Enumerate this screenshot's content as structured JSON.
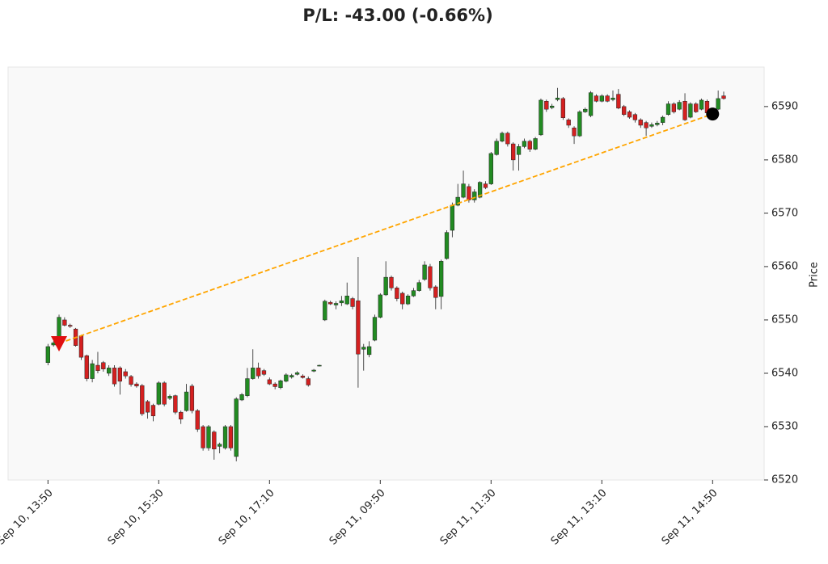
{
  "chart_data": {
    "type": "candlestick",
    "title": "P/L: -43.00 (-0.66%)",
    "y_label": "Price",
    "up_color": "#228b22",
    "down_color": "#d42020",
    "line_color": "#ffa500",
    "xlim": [
      -7.2,
      129.3
    ],
    "ylim": [
      6520,
      6597.4
    ],
    "yticks": [
      6520,
      6530,
      6540,
      6550,
      6560,
      6570,
      6580,
      6590
    ],
    "xticks": [
      {
        "value": 0,
        "label": "Sep 10, 13:50"
      },
      {
        "value": 20,
        "label": "Sep 10, 15:30"
      },
      {
        "value": 40,
        "label": "Sep 10, 17:10"
      },
      {
        "value": 60,
        "label": "Sep 11, 09:50"
      },
      {
        "value": 80,
        "label": "Sep 11, 11:30"
      },
      {
        "value": 100,
        "label": "Sep 11, 13:10"
      },
      {
        "value": 120,
        "label": "Sep 11, 14:50"
      }
    ],
    "x": [
      0,
      1,
      2,
      3,
      4,
      5,
      6,
      7,
      8,
      9,
      10,
      11,
      12,
      13,
      14,
      15,
      16,
      17,
      18,
      19,
      20,
      21,
      22,
      23,
      24,
      25,
      26,
      27,
      28,
      29,
      30,
      31,
      32,
      33,
      34,
      35,
      36,
      37,
      38,
      39,
      40,
      41,
      42,
      43,
      44,
      45,
      46,
      47,
      48,
      49,
      50,
      51,
      52,
      53,
      54,
      55,
      56,
      57,
      58,
      59,
      60,
      61,
      62,
      63,
      64,
      65,
      66,
      67,
      68,
      69,
      70,
      71,
      72,
      73,
      74,
      75,
      76,
      77,
      78,
      79,
      80,
      81,
      82,
      83,
      84,
      85,
      86,
      87,
      88,
      89,
      90,
      91,
      92,
      93,
      94,
      95,
      96,
      97,
      98,
      99,
      100,
      101,
      102,
      103,
      104,
      105,
      106,
      107,
      108,
      109,
      110,
      111,
      112,
      113,
      114,
      115,
      116,
      117,
      118,
      119,
      120,
      121,
      122
    ],
    "open": [
      6542,
      6545.3,
      6546.5,
      6550,
      6549,
      6548.3,
      6547,
      6543.3,
      6539,
      6541.5,
      6542,
      6540,
      6541,
      6541,
      6540.3,
      6539.4,
      6538,
      6537.7,
      6534.7,
      6534,
      6534.2,
      6538.2,
      6535.3,
      6535.8,
      6532.7,
      6533,
      6537.6,
      6533,
      6530,
      6526,
      6529,
      6526.3,
      6526,
      6530,
      6524.4,
      6535,
      6535.8,
      6539,
      6541,
      6540.5,
      6538.8,
      6538,
      6537.3,
      6538.5,
      6539.3,
      6539.8,
      6539.5,
      6539,
      6540.4,
      6541.4,
      6550,
      6553.3,
      6552.8,
      6553.2,
      6553,
      6554,
      6553.6,
      6544.5,
      6543.5,
      6546.2,
      6550.5,
      6554.7,
      6558,
      6556,
      6555,
      6553,
      6554.5,
      6555.5,
      6557.6,
      6560,
      6556.2,
      6554.4,
      6561.5,
      6566.8,
      6571.5,
      6573,
      6575,
      6572.5,
      6573,
      6575.5,
      6575.5,
      6581,
      6583.5,
      6585,
      6583,
      6581,
      6582.5,
      6583.5,
      6582,
      6584.7,
      6591,
      6589.8,
      6591.3,
      6591.5,
      6587.5,
      6586,
      6584.5,
      6589,
      6588.3,
      6592,
      6591,
      6592,
      6591.3,
      6592.3,
      6590,
      6589,
      6588.5,
      6587.5,
      6587,
      6586.3,
      6586.6,
      6587,
      6588.5,
      6590.5,
      6589.5,
      6591,
      6588,
      6590.5,
      6589.5,
      6591,
      6588.5,
      6589.5,
      6592
    ],
    "high": [
      6545.5,
      6546,
      6551,
      6550.5,
      6549.3,
      6548.5,
      6547.2,
      6543.5,
      6542.5,
      6544,
      6542.3,
      6541.5,
      6541.5,
      6541.3,
      6540.8,
      6539.7,
      6538.3,
      6538,
      6535,
      6534.3,
      6538.5,
      6538.5,
      6536,
      6536,
      6533,
      6538,
      6538,
      6533.3,
      6530.3,
      6530.3,
      6529.3,
      6527,
      6530.3,
      6530.3,
      6535.5,
      6536.3,
      6541,
      6544.5,
      6542,
      6540.8,
      6539.2,
      6538.3,
      6538.8,
      6540,
      6539.9,
      6540.4,
      6539.8,
      6539.4,
      6540.8,
      6541.6,
      6553.8,
      6553.6,
      6553.5,
      6554.5,
      6557,
      6554.3,
      6561.8,
      6545.5,
      6546,
      6551,
      6555,
      6561,
      6558.3,
      6556.3,
      6555.3,
      6554.8,
      6556,
      6557.5,
      6561,
      6560.5,
      6556.5,
      6561.3,
      6566.8,
      6572,
      6575.5,
      6578,
      6575.5,
      6574.5,
      6576,
      6576,
      6581.5,
      6584,
      6585.3,
      6585.3,
      6583.3,
      6583,
      6584,
      6583.8,
      6584.3,
      6591.5,
      6591.3,
      6590.5,
      6593.5,
      6591.8,
      6587.8,
      6586.3,
      6589.3,
      6589.8,
      6592.9,
      6592.3,
      6592.3,
      6592.3,
      6593,
      6593.3,
      6590.3,
      6589.3,
      6588.8,
      6587.8,
      6587.3,
      6587,
      6587.3,
      6588.3,
      6591,
      6590.8,
      6591.2,
      6592.5,
      6590.8,
      6590.8,
      6591.5,
      6591.3,
      6589.3,
      6593,
      6592.8
    ],
    "low": [
      6541.5,
      6545,
      6546,
      6548.8,
      6548.5,
      6545,
      6542.5,
      6538.5,
      6538.3,
      6540,
      6540.3,
      6539.5,
      6537.5,
      6536,
      6539,
      6537.5,
      6537.3,
      6532,
      6531.5,
      6531,
      6534,
      6533.8,
      6535,
      6532.3,
      6530.5,
      6532.8,
      6532.5,
      6529,
      6525.5,
      6525.5,
      6523.8,
      6525,
      6525.7,
      6525.5,
      6523.5,
      6534.8,
      6535.5,
      6538.8,
      6539,
      6539.5,
      6537.8,
      6537,
      6537,
      6538.3,
      6539,
      6539.6,
      6539,
      6537.5,
      6540.2,
      6541.3,
      6549.8,
      6552.8,
      6552,
      6552.6,
      6552.8,
      6552,
      6537.3,
      6540.5,
      6543,
      6546,
      6550.3,
      6554.5,
      6555.5,
      6553.5,
      6552,
      6552.8,
      6554.3,
      6555.3,
      6557.3,
      6555.5,
      6552,
      6552,
      6561.3,
      6565.5,
      6571.3,
      6572.8,
      6572,
      6572,
      6572.8,
      6574.5,
      6575.3,
      6580.8,
      6583.3,
      6582.5,
      6578,
      6578,
      6582.2,
      6581.5,
      6581.8,
      6584.5,
      6589,
      6589.5,
      6591,
      6587.5,
      6586,
      6583,
      6584.3,
      6588.8,
      6588,
      6590.8,
      6590.8,
      6590.8,
      6591,
      6589.5,
      6588.2,
      6587.7,
      6587,
      6586,
      6584.5,
      6586,
      6586.3,
      6586.5,
      6588.3,
      6588.7,
      6589.3,
      6587.3,
      6587.8,
      6588.8,
      6589.3,
      6588.5,
      6588.2,
      6589.3,
      6591.3
    ],
    "close": [
      6545,
      6545.7,
      6550.5,
      6549,
      6548.8,
      6545.2,
      6543,
      6539,
      6541.8,
      6540.5,
      6540.8,
      6541,
      6538,
      6538.5,
      6539.5,
      6537.9,
      6537.6,
      6532.4,
      6532.7,
      6532,
      6538.2,
      6534.2,
      6535.7,
      6532.7,
      6531.4,
      6536.5,
      6533,
      6529.5,
      6526,
      6530,
      6525.8,
      6526.7,
      6530,
      6526,
      6535.2,
      6536,
      6539,
      6541,
      6539.5,
      6539.8,
      6538,
      6537.5,
      6538.6,
      6539.7,
      6539.6,
      6540.1,
      6539.2,
      6537.8,
      6540.6,
      6541.5,
      6553.5,
      6553,
      6553.1,
      6553.6,
      6554.5,
      6552.5,
      6543.6,
      6544.9,
      6545,
      6550.5,
      6554.7,
      6558,
      6556,
      6554,
      6553,
      6554.5,
      6555.5,
      6557,
      6560.3,
      6556,
      6554.2,
      6561,
      6566.4,
      6571.5,
      6573,
      6575.5,
      6572.5,
      6574,
      6575.8,
      6574.8,
      6581.2,
      6583.5,
      6585,
      6583,
      6580,
      6582.5,
      6583.5,
      6582,
      6584,
      6591.2,
      6589.5,
      6590.1,
      6591.6,
      6587.9,
      6586.5,
      6584.5,
      6589,
      6589.5,
      6592.6,
      6591,
      6592,
      6591,
      6591.6,
      6589.7,
      6588.5,
      6588,
      6587.5,
      6586.5,
      6586,
      6586.6,
      6586.9,
      6588,
      6590.5,
      6589,
      6590.8,
      6587.5,
      6590.5,
      6589,
      6591.2,
      6588.8,
      6589,
      6591.5,
      6591.5
    ],
    "entry": {
      "x": 2,
      "price": 6545.6
    },
    "exit": {
      "x": 120,
      "price": 6588.6
    }
  }
}
